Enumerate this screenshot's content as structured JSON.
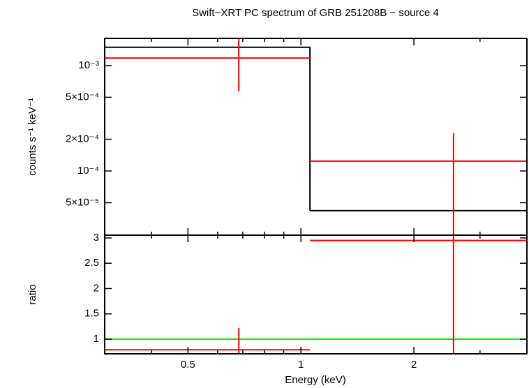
{
  "chart_data": [
    {
      "type": "spectrum",
      "title": "Swift−XRT PC spectrum of GRB 251208B − source 4",
      "ylabel": "counts s⁻¹ keV⁻¹",
      "log_x": true,
      "log_y": true,
      "ylim": [
        2.46e-05,
        0.00181
      ],
      "yticks": [
        {
          "value": 5e-05,
          "label": "5×10⁻⁵"
        },
        {
          "value": 0.0001,
          "label": "10⁻⁴"
        },
        {
          "value": 0.0002,
          "label": "2×10⁻⁴"
        },
        {
          "value": 0.0005,
          "label": "5×10⁻⁴"
        },
        {
          "value": 0.001,
          "label": "10⁻³"
        }
      ],
      "bin_edges": [
        0.3,
        1.057,
        4.0
      ],
      "data": {
        "color": "#ff0000",
        "x": [
          0.683,
          2.55
        ],
        "values": [
          0.00118,
          0.000124
        ],
        "errors": [
          0.00061,
          0.000104
        ]
      },
      "model": {
        "color": "#000000",
        "values": [
          0.00149,
          4.2e-05
        ]
      }
    },
    {
      "type": "ratio",
      "ylabel": "ratio",
      "xlabel": "Energy (keV)",
      "log_x": true,
      "xlim": [
        0.3,
        4.0
      ],
      "xticks": [
        0.5,
        1,
        2
      ],
      "xminorticks": [
        0.3,
        0.4,
        0.6,
        0.7,
        0.8,
        0.9,
        3,
        4
      ],
      "ylim": [
        0.71,
        3.055
      ],
      "yticks": [
        1,
        1.5,
        2,
        2.5,
        3
      ],
      "bin_edges": [
        0.3,
        1.057,
        4.0
      ],
      "data": {
        "color": "#ff0000",
        "x": [
          0.683,
          2.55
        ],
        "values": [
          0.79,
          2.95
        ],
        "errors": [
          0.43,
          2.5
        ]
      },
      "reference": {
        "color": "#00ee00",
        "value": 1
      }
    }
  ]
}
